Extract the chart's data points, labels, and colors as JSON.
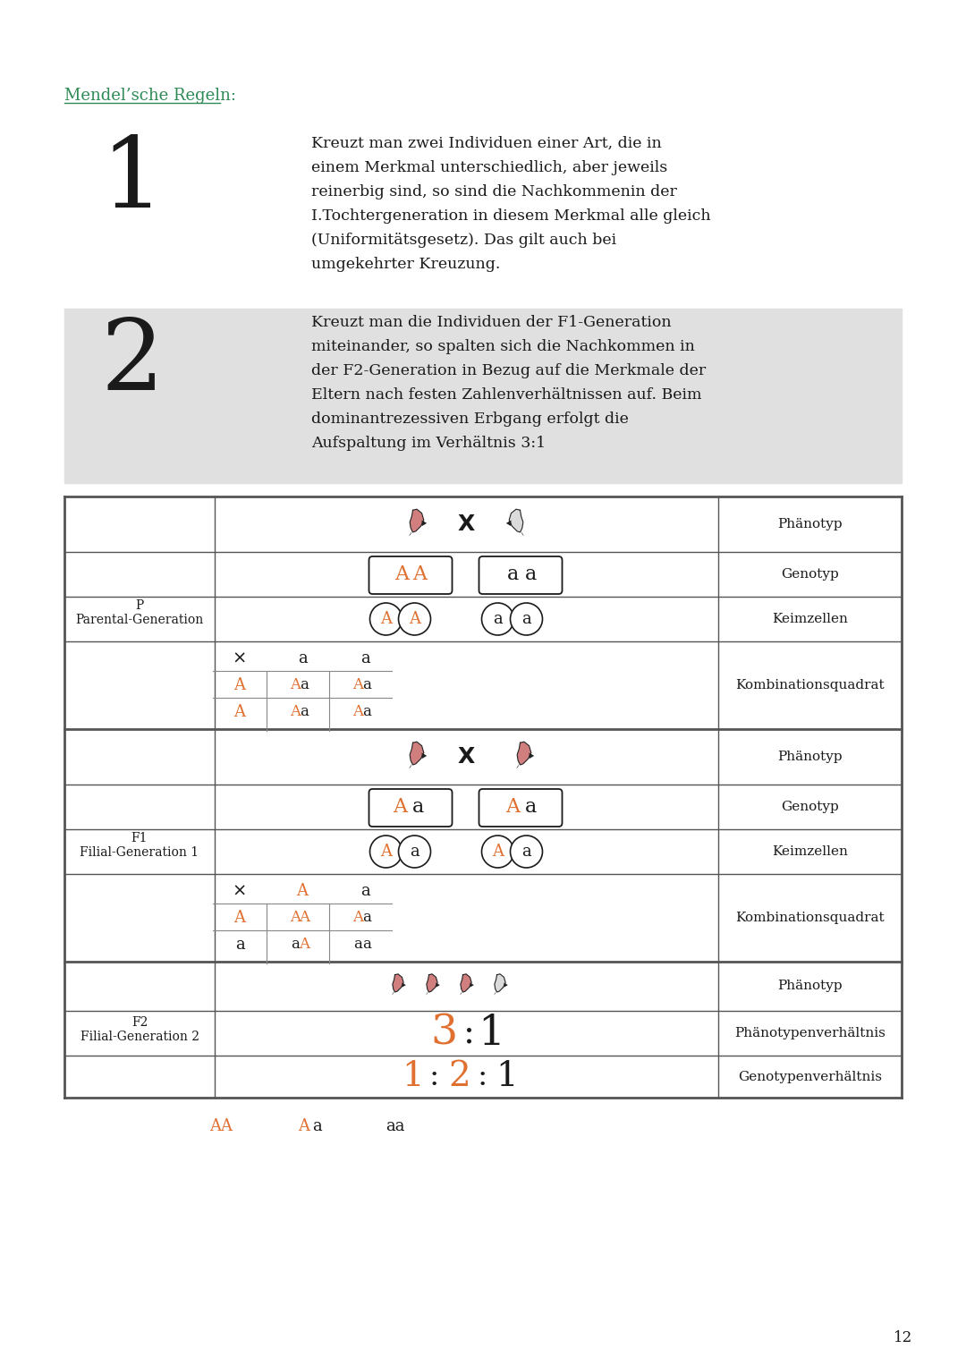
{
  "title_link": "Mendel’sche Regeln:",
  "title_color": "#2e8b57",
  "rule1_number": "1",
  "rule1_text_lines": [
    "Kreuzt man zwei Individuen einer Art, die in",
    "einem Merkmal unterschiedlich, aber jeweils",
    "reinerbig sind, so sind die Nachkommenin der",
    "I.Tochtergeneration in diesem Merkmal alle gleich",
    "(Uniformitätsgesetz). Das gilt auch bei",
    "umgekehrter Kreuzung."
  ],
  "rule2_number": "2",
  "rule2_text_lines": [
    "Kreuzt man die Individuen der F1-Generation",
    "miteinander, so spalten sich die Nachkommen in",
    "der F2-Generation in Bezug auf die Merkmale der",
    "Eltern nach festen Zahlenverhältnissen auf. Beim",
    "dominantrezessiven Erbgang erfolgt die",
    "Aufspaltung im Verhältnis 3:1"
  ],
  "page_number": "12",
  "bg_color": "#ffffff",
  "text_color": "#1a1a1a",
  "orange_color": "#e07030",
  "gray_bg": "#e0e0e0",
  "table_border": "#555555"
}
